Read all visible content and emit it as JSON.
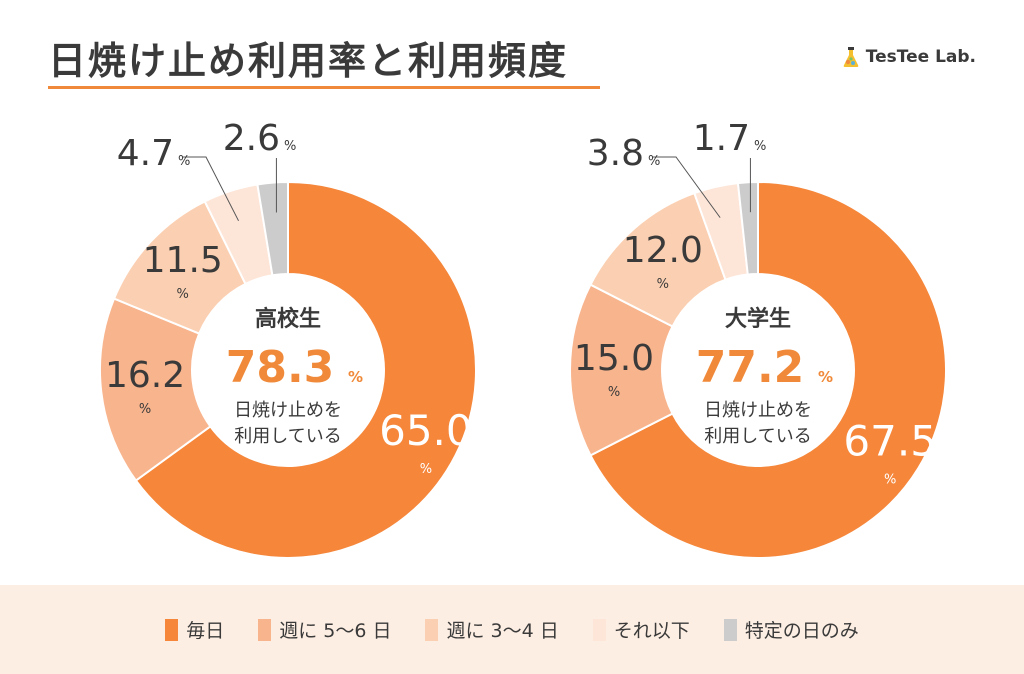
{
  "title": "日焼け止め利用率と利用頻度",
  "brand": "TesTee Lab.",
  "colors": {
    "accent": "#f08a3a",
    "series": [
      "#f5863a",
      "#f8b48d",
      "#fbcfb1",
      "#fde5d8",
      "#cccccc"
    ]
  },
  "legend": [
    "毎日",
    "週に 5〜6 日",
    "週に 3〜4 日",
    "それ以下",
    "特定の日のみ"
  ],
  "chart_data": [
    {
      "type": "pie",
      "title": "高校生",
      "center_value": "78.3",
      "center_unit": "%",
      "center_caption_line1": "日焼け止めを",
      "center_caption_line2": "利用している",
      "categories": [
        "毎日",
        "週に 5〜6 日",
        "週に 3〜4 日",
        "それ以下",
        "特定の日のみ"
      ],
      "values": [
        65.0,
        16.2,
        11.5,
        4.7,
        2.6
      ],
      "labels": [
        "65.0",
        "16.2",
        "11.5",
        "4.7",
        "2.6"
      ],
      "unit": "%"
    },
    {
      "type": "pie",
      "title": "大学生",
      "center_value": "77.2",
      "center_unit": "%",
      "center_caption_line1": "日焼け止めを",
      "center_caption_line2": "利用している",
      "categories": [
        "毎日",
        "週に 5〜6 日",
        "週に 3〜4 日",
        "それ以下",
        "特定の日のみ"
      ],
      "values": [
        67.5,
        15.0,
        12.0,
        3.8,
        1.7
      ],
      "labels": [
        "67.5",
        "15.0",
        "12.0",
        "3.8",
        "1.7"
      ],
      "unit": "%"
    }
  ]
}
